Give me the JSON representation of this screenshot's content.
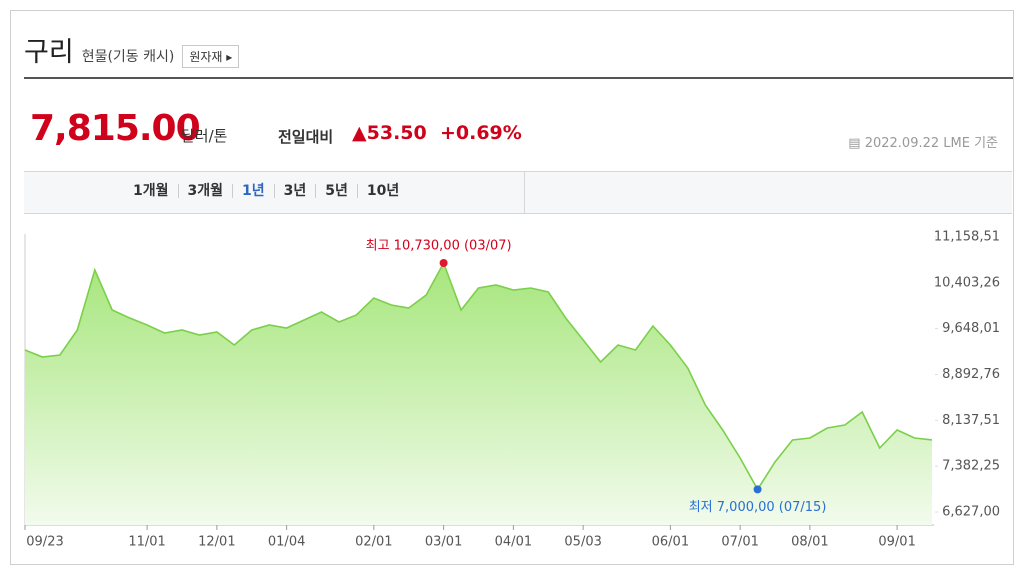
{
  "header": {
    "title": "구리",
    "subtitle": "현물(기동 캐시)",
    "button": "원자재"
  },
  "quote": {
    "price": "7,815.00",
    "unit": "달러/톤",
    "change_label": "전일대비",
    "change": "53.50",
    "change_pct": "+0.69%",
    "date": "2022.09.22 LME 기준"
  },
  "tabs": [
    "1개월",
    "3개월",
    "1년",
    "3년",
    "5년",
    "10년"
  ],
  "chart_data": {
    "type": "area",
    "color": "#7ccf4a",
    "categories": [
      "09/23",
      null,
      null,
      null,
      null,
      null,
      null,
      "11/01",
      null,
      null,
      null,
      "12/01",
      null,
      null,
      null,
      "01/04",
      null,
      null,
      null,
      null,
      "02/01",
      null,
      null,
      null,
      "03/01",
      null,
      null,
      null,
      "04/01",
      null,
      null,
      null,
      "05/03",
      null,
      null,
      null,
      null,
      "06/01",
      null,
      null,
      null,
      "07/01",
      null,
      null,
      null,
      "08/01",
      null,
      null,
      null,
      null,
      "09/01",
      null,
      null
    ],
    "series": [
      {
        "name": "구리",
        "color": "#7ccf4a",
        "values": [
          9297,
          9181,
          9214,
          9626,
          10615,
          9956,
          9824,
          9708,
          9577,
          9626,
          9544,
          9593,
          9379,
          9626,
          9708,
          9659,
          9791,
          9923,
          9758,
          9874,
          10153,
          10038,
          9989,
          10203,
          10730,
          9956,
          10318,
          10368,
          10285,
          10318,
          10252,
          9824,
          9461,
          9099,
          9379,
          9297,
          9692,
          9379,
          9000,
          8390,
          7978,
          7517,
          7000,
          7451,
          7814,
          7847,
          8011,
          8061,
          8275,
          7682,
          7978,
          7847,
          7815
        ]
      }
    ],
    "ylim": [
      6627,
      11158.51
    ],
    "yticks": [
      {
        "value": 6627,
        "label": "6,627,00"
      },
      {
        "value": 7382.25,
        "label": "7,382,25"
      },
      {
        "value": 8137.51,
        "label": "8,137,51"
      },
      {
        "value": 8892.76,
        "label": "8,892,76"
      },
      {
        "value": 9648.01,
        "label": "9,648,01"
      },
      {
        "value": 10403.26,
        "label": "10,403,26"
      },
      {
        "value": 11158.51,
        "label": "11,158,51"
      }
    ],
    "annotations": {
      "high": "최고 10,730,00 (03/07)",
      "low": "최저 7,000,00 (07/15)"
    }
  }
}
